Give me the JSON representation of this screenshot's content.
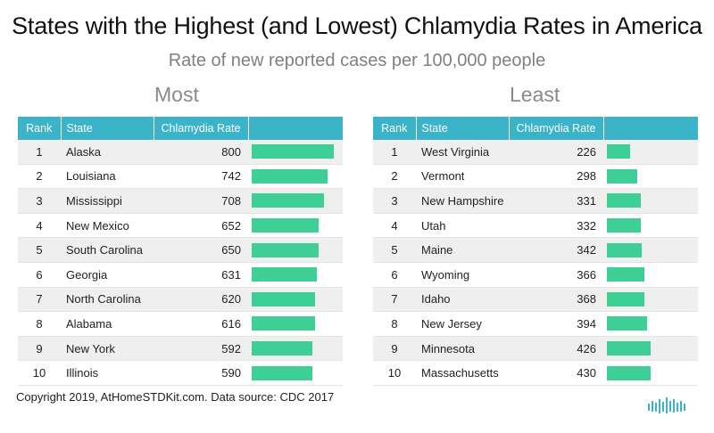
{
  "title": "States with the Highest (and Lowest) Chlamydia Rates in America",
  "subtitle": "Rate of new reported cases per 100,000 people",
  "footer": "Copyright 2019, AtHomeSTDKit.com. Data source: CDC 2017",
  "colors": {
    "header": "#3bb3c9",
    "bar": "#3ecf97",
    "stripe": "#efefef"
  },
  "chart_data": [
    {
      "type": "table",
      "title": "Most",
      "columns": [
        "Rank",
        "State",
        "Chlamydia Rate"
      ],
      "bar_max": 800,
      "rows": [
        {
          "rank": "1",
          "state": "Alaska",
          "rate": 800
        },
        {
          "rank": "2",
          "state": "Louisiana",
          "rate": 742
        },
        {
          "rank": "3",
          "state": "Mississippi",
          "rate": 708
        },
        {
          "rank": "4",
          "state": "New Mexico",
          "rate": 652
        },
        {
          "rank": "5",
          "state": "South Carolina",
          "rate": 650
        },
        {
          "rank": "6",
          "state": "Georgia",
          "rate": 631
        },
        {
          "rank": "7",
          "state": "North Carolina",
          "rate": 620
        },
        {
          "rank": "8",
          "state": "Alabama",
          "rate": 616
        },
        {
          "rank": "9",
          "state": "New York",
          "rate": 592
        },
        {
          "rank": "10",
          "state": "Illinois",
          "rate": 590
        }
      ]
    },
    {
      "type": "table",
      "title": "Least",
      "columns": [
        "Rank",
        "State",
        "Chlamydia Rate"
      ],
      "bar_max": 800,
      "rows": [
        {
          "rank": "1",
          "state": "West Virginia",
          "rate": 226
        },
        {
          "rank": "2",
          "state": "Vermont",
          "rate": 298
        },
        {
          "rank": "3",
          "state": "New Hampshire",
          "rate": 331
        },
        {
          "rank": "4",
          "state": "Utah",
          "rate": 332
        },
        {
          "rank": "5",
          "state": "Maine",
          "rate": 342
        },
        {
          "rank": "6",
          "state": "Wyoming",
          "rate": 366
        },
        {
          "rank": "7",
          "state": "Idaho",
          "rate": 368
        },
        {
          "rank": "8",
          "state": "New Jersey",
          "rate": 394
        },
        {
          "rank": "9",
          "state": "Minnesota",
          "rate": 426
        },
        {
          "rank": "10",
          "state": "Massachusetts",
          "rate": 430
        }
      ]
    }
  ]
}
